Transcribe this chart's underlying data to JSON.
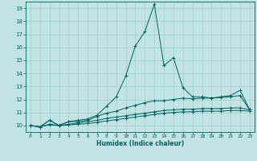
{
  "xlabel": "Humidex (Indice chaleur)",
  "xlim": [
    -0.5,
    23.5
  ],
  "ylim": [
    9.5,
    19.5
  ],
  "yticks": [
    10,
    11,
    12,
    13,
    14,
    15,
    16,
    17,
    18,
    19
  ],
  "xticks": [
    0,
    1,
    2,
    3,
    4,
    5,
    6,
    7,
    8,
    9,
    10,
    11,
    12,
    13,
    14,
    15,
    16,
    17,
    18,
    19,
    20,
    21,
    22,
    23
  ],
  "bg_color": "#c2e4e4",
  "grid_color": "#9ecece",
  "line_color": "#006060",
  "lines": [
    {
      "x": [
        0,
        1,
        2,
        3,
        4,
        5,
        6,
        7,
        8,
        9,
        10,
        11,
        12,
        13,
        14,
        15,
        16,
        17,
        18,
        19,
        20,
        21,
        22,
        23
      ],
      "y": [
        10.0,
        9.9,
        10.4,
        10.0,
        10.3,
        10.4,
        10.5,
        10.8,
        11.5,
        12.2,
        13.8,
        16.1,
        17.2,
        19.3,
        14.6,
        15.2,
        12.9,
        12.2,
        12.2,
        12.1,
        12.2,
        12.3,
        12.7,
        11.2
      ]
    },
    {
      "x": [
        0,
        1,
        2,
        3,
        4,
        5,
        6,
        7,
        8,
        9,
        10,
        11,
        12,
        13,
        14,
        15,
        16,
        17,
        18,
        19,
        20,
        21,
        22,
        23
      ],
      "y": [
        10.0,
        9.9,
        10.4,
        10.0,
        10.3,
        10.3,
        10.4,
        10.7,
        10.95,
        11.1,
        11.35,
        11.55,
        11.75,
        11.9,
        11.9,
        12.0,
        12.1,
        12.05,
        12.1,
        12.1,
        12.15,
        12.2,
        12.3,
        11.2
      ]
    },
    {
      "x": [
        0,
        1,
        2,
        3,
        4,
        5,
        6,
        7,
        8,
        9,
        10,
        11,
        12,
        13,
        14,
        15,
        16,
        17,
        18,
        19,
        20,
        21,
        22,
        23
      ],
      "y": [
        10.0,
        9.9,
        10.1,
        10.0,
        10.1,
        10.2,
        10.3,
        10.4,
        10.55,
        10.65,
        10.75,
        10.85,
        10.95,
        11.05,
        11.15,
        11.2,
        11.25,
        11.25,
        11.3,
        11.3,
        11.3,
        11.35,
        11.35,
        11.2
      ]
    },
    {
      "x": [
        0,
        1,
        2,
        3,
        4,
        5,
        6,
        7,
        8,
        9,
        10,
        11,
        12,
        13,
        14,
        15,
        16,
        17,
        18,
        19,
        20,
        21,
        22,
        23
      ],
      "y": [
        10.0,
        9.9,
        10.05,
        10.0,
        10.05,
        10.1,
        10.15,
        10.25,
        10.35,
        10.45,
        10.55,
        10.65,
        10.75,
        10.85,
        10.95,
        11.0,
        11.05,
        11.05,
        11.1,
        11.1,
        11.1,
        11.15,
        11.15,
        11.1
      ]
    }
  ]
}
